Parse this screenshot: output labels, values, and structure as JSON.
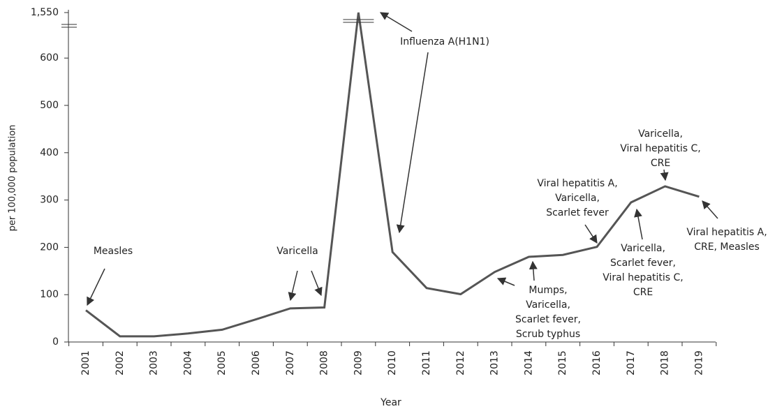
{
  "chart_data": {
    "type": "line",
    "x_label": "Year",
    "y_label": "per 100,000 population",
    "categories": [
      "2001",
      "2002",
      "2003",
      "2004",
      "2005",
      "2006",
      "2007",
      "2008",
      "2009",
      "2010",
      "2011",
      "2012",
      "2013",
      "2014",
      "2015",
      "2016",
      "2017",
      "2018",
      "2019"
    ],
    "values": [
      67,
      12,
      12,
      18,
      26,
      48,
      71,
      73,
      1550,
      190,
      114,
      101,
      148,
      180,
      184,
      201,
      295,
      329,
      307
    ],
    "color": "#555555",
    "ylim": [
      0,
      1550
    ],
    "yticks": [
      0,
      100,
      200,
      300,
      400,
      500,
      600,
      {
        "value": 1550,
        "label": "1,550"
      }
    ],
    "y_axis_break": true,
    "annotations": [
      {
        "lines": [
          "Measles"
        ]
      },
      {
        "lines": [
          "Varicella"
        ]
      },
      {
        "lines": [
          "Influenza A(H1N1)"
        ]
      },
      {
        "lines": [
          "Viral hepatitis A,",
          "Varicella,",
          "Scarlet fever"
        ]
      },
      {
        "lines": [
          "Varicella,",
          "Viral hepatitis C,",
          "CRE"
        ]
      },
      {
        "lines": [
          "Mumps,",
          "Varicella,",
          "Scarlet fever,",
          "Scrub typhus"
        ]
      },
      {
        "lines": [
          "Varicella,",
          "Scarlet fever,",
          "Viral hepatitis C,",
          "CRE"
        ]
      },
      {
        "lines": [
          "Viral hepatitis A,",
          "CRE, Measles"
        ]
      }
    ]
  }
}
